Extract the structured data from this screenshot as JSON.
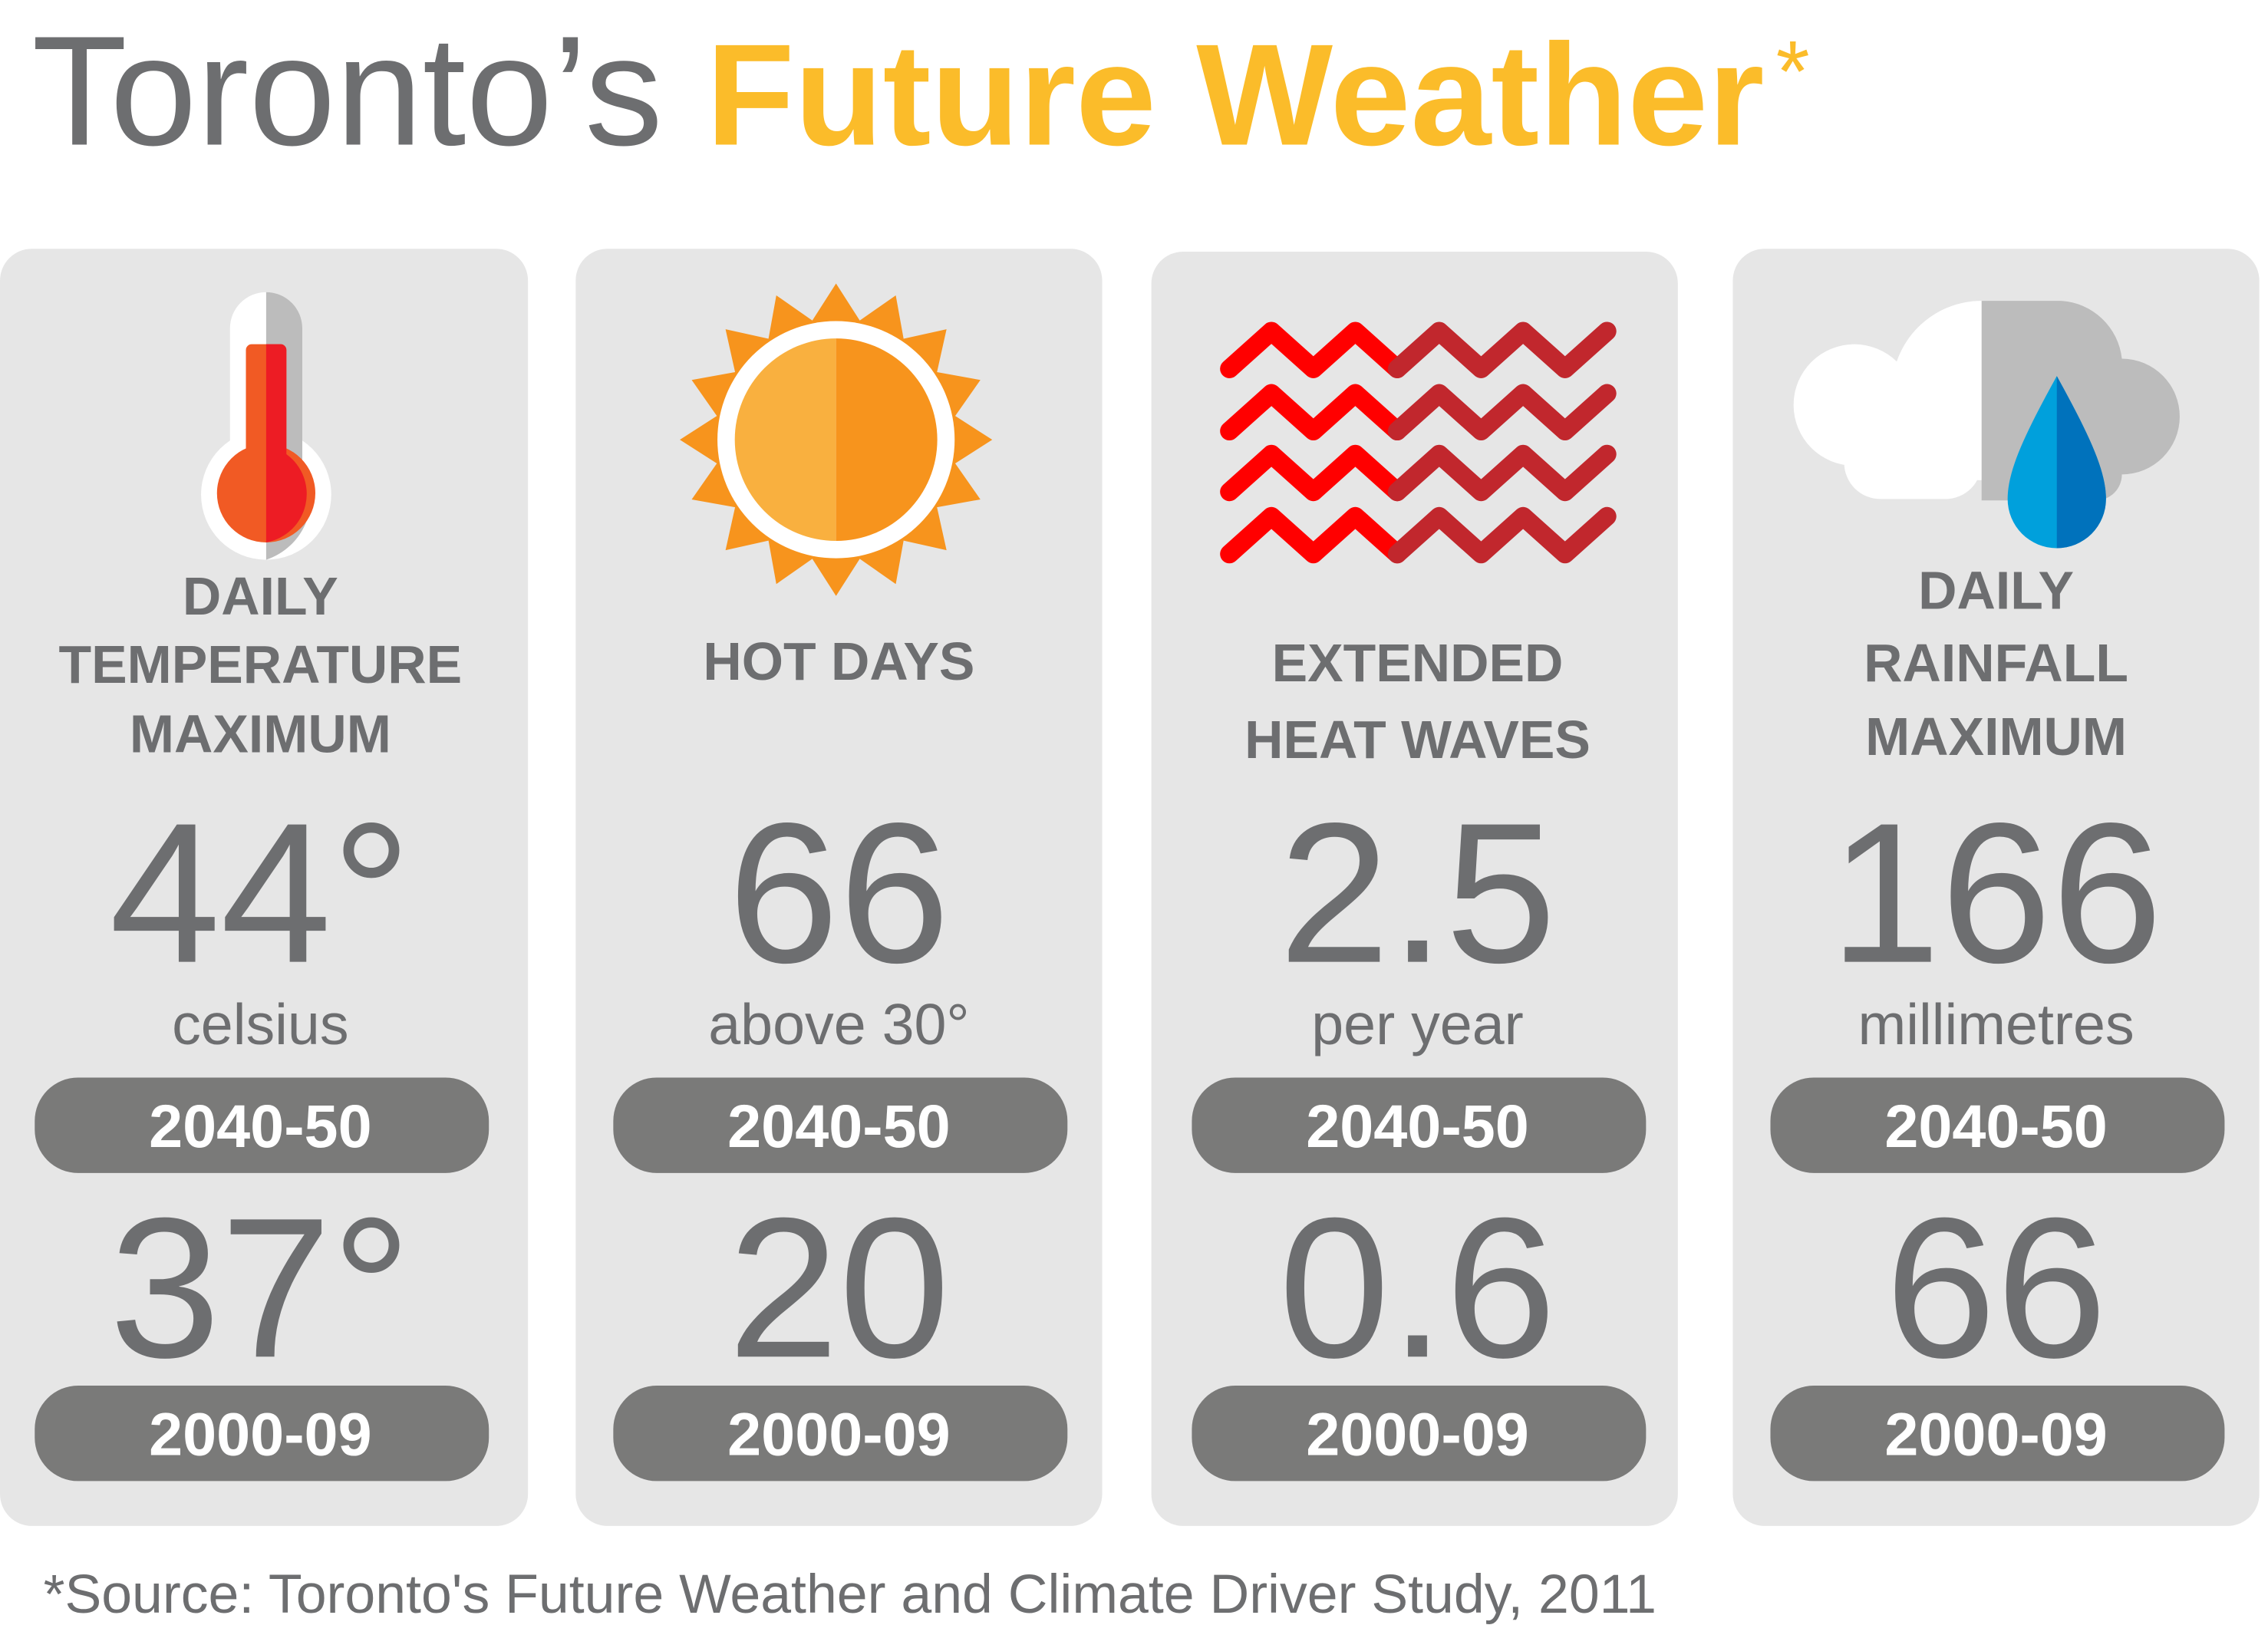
{
  "header": {
    "title_plain": "Toronto’s",
    "title_accent": "Future Weather",
    "asterisk": "*"
  },
  "cards": [
    {
      "label": [
        "DAILY",
        "TEMPERATURE",
        "MAXIMUM"
      ],
      "future_value": "44°",
      "unit": "celsius",
      "future_period": "2040-50",
      "past_value": "37°",
      "past_period": "2000-09"
    },
    {
      "label": [
        "HOT DAYS"
      ],
      "future_value": "66",
      "unit": "above 30°",
      "future_period": "2040-50",
      "past_value": "20",
      "past_period": "2000-09"
    },
    {
      "label": [
        "EXTENDED",
        "HEAT WAVES"
      ],
      "future_value": "2.5",
      "unit": "per year",
      "future_period": "2040-50",
      "past_value": "0.6",
      "past_period": "2000-09"
    },
    {
      "label": [
        "DAILY",
        "RAINFALL",
        "MAXIMUM"
      ],
      "future_value": "166",
      "unit": "millimetres",
      "future_period": "2040-50",
      "past_value": "66",
      "past_period": "2000-09"
    }
  ],
  "source": "*Source: Toronto's Future Weather and Climate Driver Study, 2011"
}
